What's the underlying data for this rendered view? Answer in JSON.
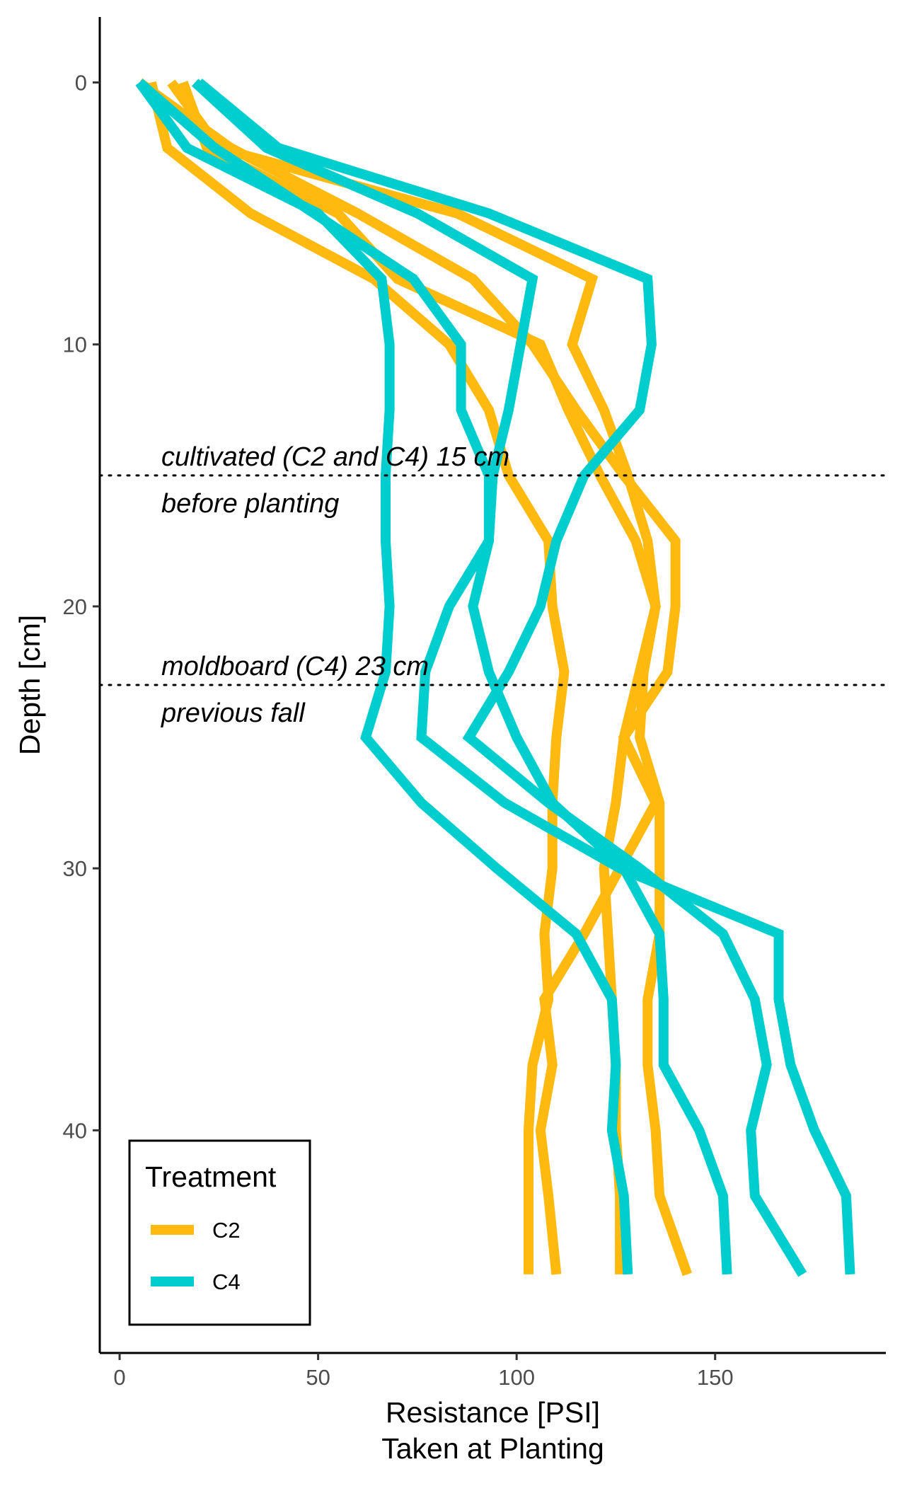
{
  "chart_data": {
    "type": "line",
    "orientation": "depth-profile",
    "xlabel": [
      "Resistance [PSI]",
      "Taken at Planting"
    ],
    "ylabel": "Depth [cm]",
    "xlim": [
      -5,
      193
    ],
    "ylim": [
      48.5,
      -2.5
    ],
    "y_inverted": true,
    "x_ticks": [
      0,
      50,
      100,
      150
    ],
    "y_ticks": [
      0,
      10,
      20,
      30,
      40
    ],
    "grid": false,
    "legend": {
      "title": "Treatment",
      "placement": "bottom-left",
      "entries": [
        {
          "label": "C2",
          "color": "#FFB90F"
        },
        {
          "label": "C4",
          "color": "#00CDCD"
        }
      ]
    },
    "hlines": [
      {
        "depth": 15,
        "style": "dotted",
        "labels": [
          "cultivated (C2 and C4) 15 cm",
          "before planting"
        ]
      },
      {
        "depth": 23,
        "style": "dotted",
        "labels": [
          "moldboard (C4) 23 cm",
          "previous fall"
        ]
      }
    ],
    "series": [
      {
        "treatment": "C2",
        "color": "#FFB90F",
        "points": [
          [
            8,
            0
          ],
          [
            12,
            2.5
          ],
          [
            33,
            5
          ],
          [
            64,
            7.5
          ],
          [
            83,
            10
          ],
          [
            93,
            12.5
          ],
          [
            98,
            15
          ],
          [
            108,
            17.5
          ],
          [
            109,
            20
          ],
          [
            112,
            22.5
          ],
          [
            110,
            25
          ],
          [
            109,
            27.5
          ],
          [
            109,
            30
          ],
          [
            107,
            32.5
          ],
          [
            108,
            35
          ],
          [
            104,
            37.5
          ],
          [
            103,
            40
          ],
          [
            103,
            42.5
          ],
          [
            103,
            45.5
          ]
        ]
      },
      {
        "treatment": "C2",
        "color": "#FFB90F",
        "points": [
          [
            16,
            0
          ],
          [
            22,
            2.5
          ],
          [
            55,
            5
          ],
          [
            70,
            7.5
          ],
          [
            106,
            10
          ],
          [
            113,
            12.5
          ],
          [
            121,
            15
          ],
          [
            130,
            17.5
          ],
          [
            135,
            20
          ],
          [
            131,
            22.5
          ],
          [
            127,
            25
          ],
          [
            125,
            27.5
          ],
          [
            122,
            30
          ],
          [
            123,
            32.5
          ],
          [
            124,
            35
          ],
          [
            125,
            37.5
          ],
          [
            125,
            40
          ],
          [
            126,
            42.5
          ],
          [
            126,
            45.5
          ]
        ]
      },
      {
        "treatment": "C2",
        "color": "#FFB90F",
        "points": [
          [
            13,
            0
          ],
          [
            25,
            2.5
          ],
          [
            85,
            5
          ],
          [
            119,
            7.5
          ],
          [
            114,
            10
          ],
          [
            122,
            12.5
          ],
          [
            128,
            15
          ],
          [
            133,
            17.5
          ],
          [
            135,
            20
          ],
          [
            132,
            22.5
          ],
          [
            131,
            25
          ],
          [
            136,
            27.5
          ],
          [
            136,
            30
          ],
          [
            136,
            32.5
          ],
          [
            133,
            35
          ],
          [
            133,
            37.5
          ],
          [
            135,
            40
          ],
          [
            136,
            42.5
          ],
          [
            143,
            45.5
          ]
        ]
      },
      {
        "treatment": "C2",
        "color": "#FFB90F",
        "points": [
          [
            5,
            0
          ],
          [
            28,
            2.5
          ],
          [
            60,
            5
          ],
          [
            89,
            7.5
          ],
          [
            104,
            10
          ],
          [
            115,
            12.5
          ],
          [
            127,
            15
          ],
          [
            140,
            17.5
          ],
          [
            140,
            20
          ],
          [
            138,
            22.5
          ],
          [
            127,
            25
          ],
          [
            135,
            27.5
          ],
          [
            126,
            30
          ],
          [
            117,
            32.5
          ],
          [
            107,
            35
          ],
          [
            109,
            37.5
          ],
          [
            106,
            40
          ],
          [
            108,
            42.5
          ],
          [
            110,
            45.5
          ]
        ]
      },
      {
        "treatment": "C4",
        "color": "#00CDCD",
        "points": [
          [
            20,
            0
          ],
          [
            40,
            2.5
          ],
          [
            93,
            5
          ],
          [
            133,
            7.5
          ],
          [
            134,
            10
          ],
          [
            131,
            12.5
          ],
          [
            117,
            15
          ],
          [
            110,
            17.5
          ],
          [
            106,
            20
          ],
          [
            98,
            22.5
          ],
          [
            88,
            25
          ],
          [
            108,
            27.5
          ],
          [
            131,
            30
          ],
          [
            152,
            32.5
          ],
          [
            160,
            35
          ],
          [
            163,
            37.5
          ],
          [
            159,
            40
          ],
          [
            160,
            42.5
          ],
          [
            172,
            45.5
          ]
        ]
      },
      {
        "treatment": "C4",
        "color": "#00CDCD",
        "points": [
          [
            5,
            0
          ],
          [
            17,
            2.5
          ],
          [
            50,
            5
          ],
          [
            66,
            7.5
          ],
          [
            68,
            10
          ],
          [
            68,
            12.5
          ],
          [
            67,
            15
          ],
          [
            67,
            17.5
          ],
          [
            68,
            20
          ],
          [
            67,
            22.5
          ],
          [
            62,
            25
          ],
          [
            76,
            27.5
          ],
          [
            95,
            30
          ],
          [
            115,
            32.5
          ],
          [
            124,
            35
          ],
          [
            125,
            37.5
          ],
          [
            124,
            40
          ],
          [
            127,
            42.5
          ],
          [
            128,
            45.5
          ]
        ]
      },
      {
        "treatment": "C4",
        "color": "#00CDCD",
        "points": [
          [
            19,
            0
          ],
          [
            37,
            2.5
          ],
          [
            75,
            5
          ],
          [
            104,
            7.5
          ],
          [
            101,
            10
          ],
          [
            98,
            12.5
          ],
          [
            94,
            15
          ],
          [
            93,
            17.5
          ],
          [
            89,
            20
          ],
          [
            93,
            22.5
          ],
          [
            100,
            25
          ],
          [
            109,
            27.5
          ],
          [
            127,
            30
          ],
          [
            136,
            32.5
          ],
          [
            137,
            35
          ],
          [
            137,
            37.5
          ],
          [
            146,
            40
          ],
          [
            152,
            42.5
          ],
          [
            153,
            45.5
          ]
        ]
      },
      {
        "treatment": "C4",
        "color": "#00CDCD",
        "points": [
          [
            5,
            0
          ],
          [
            24,
            2.5
          ],
          [
            49,
            5
          ],
          [
            74,
            7.5
          ],
          [
            86,
            10
          ],
          [
            86,
            12.5
          ],
          [
            93,
            15
          ],
          [
            93,
            17.5
          ],
          [
            83,
            20
          ],
          [
            77,
            22.5
          ],
          [
            76,
            25
          ],
          [
            97,
            27.5
          ],
          [
            126,
            30
          ],
          [
            166,
            32.5
          ],
          [
            166,
            35
          ],
          [
            169,
            37.5
          ],
          [
            175,
            40
          ],
          [
            183,
            42.5
          ],
          [
            184,
            45.5
          ]
        ]
      }
    ]
  }
}
